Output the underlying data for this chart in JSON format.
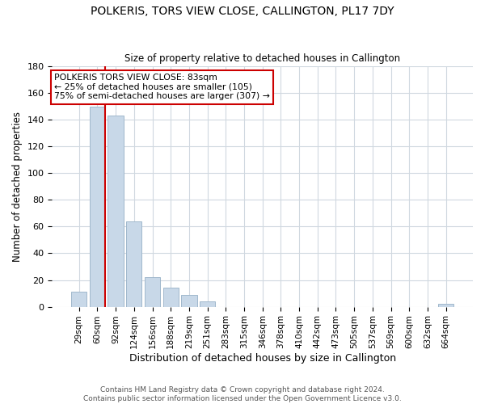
{
  "title": "POLKERIS, TORS VIEW CLOSE, CALLINGTON, PL17 7DY",
  "subtitle": "Size of property relative to detached houses in Callington",
  "xlabel": "Distribution of detached houses by size in Callington",
  "ylabel": "Number of detached properties",
  "bar_labels": [
    "29sqm",
    "60sqm",
    "92sqm",
    "124sqm",
    "156sqm",
    "188sqm",
    "219sqm",
    "251sqm",
    "283sqm",
    "315sqm",
    "346sqm",
    "378sqm",
    "410sqm",
    "442sqm",
    "473sqm",
    "505sqm",
    "537sqm",
    "569sqm",
    "600sqm",
    "632sqm",
    "664sqm"
  ],
  "bar_values": [
    11,
    150,
    143,
    64,
    22,
    14,
    9,
    4,
    0,
    0,
    0,
    0,
    0,
    0,
    0,
    0,
    0,
    0,
    0,
    0,
    2
  ],
  "bar_color": "#c8d8e8",
  "bar_edge_color": "#a0b8cc",
  "ylim": [
    0,
    180
  ],
  "yticks": [
    0,
    20,
    40,
    60,
    80,
    100,
    120,
    140,
    160,
    180
  ],
  "property_line_bar_index": 1,
  "property_line_color": "#cc0000",
  "annotation_title": "POLKERIS TORS VIEW CLOSE: 83sqm",
  "annotation_line1": "← 25% of detached houses are smaller (105)",
  "annotation_line2": "75% of semi-detached houses are larger (307) →",
  "footer_line1": "Contains HM Land Registry data © Crown copyright and database right 2024.",
  "footer_line2": "Contains public sector information licensed under the Open Government Licence v3.0.",
  "background_color": "#ffffff",
  "grid_color": "#d0d8e0"
}
